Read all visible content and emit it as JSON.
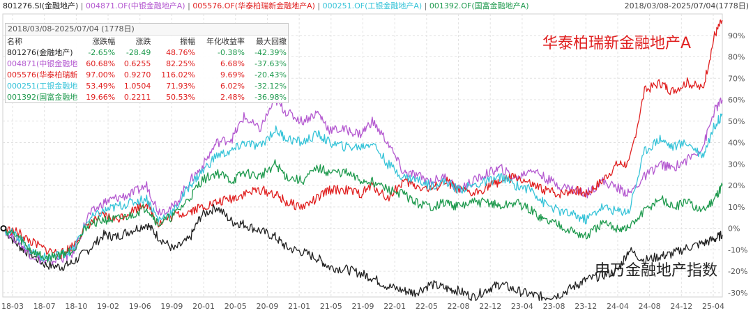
{
  "legend": [
    {
      "text": "801276.SI(金融地产)",
      "color": "#222222"
    },
    {
      "text": "004871.OF(中银金融地产A)",
      "color": "#b459d0"
    },
    {
      "text": "005576.OF(华泰柏瑞新金融地产A)",
      "color": "#e02020"
    },
    {
      "text": "000251.OF(工银金融地产A)",
      "color": "#36c3d8"
    },
    {
      "text": "001392.OF(国富金融地产A)",
      "color": "#1f9a4e"
    }
  ],
  "header_range": "2018/03/08-2025/07/04(1778日)",
  "stats": {
    "title": "2018/03/08-2025/07/04 (1778日)",
    "headers": [
      "名称",
      "涨跌幅",
      "涨跌",
      "振幅",
      "年化收益率",
      "最大回撤"
    ],
    "rows": [
      {
        "name": "801276(金融地产)",
        "color": "#222222",
        "values": [
          "-2.65%",
          "-28.49",
          "48.76%",
          "-0.38%",
          "-42.39%"
        ]
      },
      {
        "name": "004871(中银金融地",
        "color": "#b459d0",
        "values": [
          "60.68%",
          "0.6255",
          "82.25%",
          "6.68%",
          "-37.63%"
        ]
      },
      {
        "name": "005576(华泰柏瑞新",
        "color": "#e02020",
        "values": [
          "97.00%",
          "0.9270",
          "116.02%",
          "9.69%",
          "-20.43%"
        ]
      },
      {
        "name": "000251(工银金融地",
        "color": "#36c3d8",
        "values": [
          "53.49%",
          "1.0504",
          "71.93%",
          "6.02%",
          "-32.12%"
        ]
      },
      {
        "name": "001392(国富金融地",
        "color": "#1f9a4e",
        "values": [
          "19.66%",
          "0.2211",
          "50.53%",
          "2.48%",
          "-36.98%"
        ]
      }
    ]
  },
  "annotation_fund": "华泰柏瑞新金融地产A",
  "annotation_index": "申万金融地产指数",
  "chart_data": {
    "type": "line",
    "x_ticks": [
      "18-03",
      "18-07",
      "18-10",
      "19-02",
      "19-06",
      "19-09",
      "20-01",
      "20-05",
      "20-09",
      "21-01",
      "21-05",
      "21-09",
      "22-01",
      "22-05",
      "22-08",
      "22-12",
      "23-04",
      "23-08",
      "23-12",
      "24-04",
      "24-08",
      "24-12",
      "25-04"
    ],
    "y_ticks": [
      "-30%",
      "-20%",
      "-10%",
      "0%",
      "10%",
      "20%",
      "30%",
      "40%",
      "50%",
      "60%",
      "70%",
      "80%",
      "90%"
    ],
    "ylim": [
      -32,
      100
    ],
    "grid": true,
    "series": [
      {
        "name": "801276.SI(金融地产)",
        "color": "#222222",
        "points": [
          [
            0,
            0
          ],
          [
            4,
            -8
          ],
          [
            7,
            -12
          ],
          [
            11,
            -17
          ],
          [
            15,
            -18
          ],
          [
            18,
            -16
          ],
          [
            22,
            -10
          ],
          [
            26,
            -3
          ],
          [
            29,
            -4
          ],
          [
            33,
            -1
          ],
          [
            37,
            2
          ],
          [
            40,
            -4
          ],
          [
            44,
            -10
          ],
          [
            48,
            -5
          ],
          [
            51,
            6
          ],
          [
            55,
            10
          ],
          [
            59,
            3
          ],
          [
            62,
            2
          ],
          [
            66,
            -1
          ],
          [
            70,
            -4
          ],
          [
            73,
            -9
          ],
          [
            77,
            -11
          ],
          [
            81,
            -14
          ],
          [
            84,
            -18
          ],
          [
            88,
            -19
          ],
          [
            92,
            -21
          ],
          [
            95,
            -23
          ],
          [
            99,
            -27
          ],
          [
            103,
            -29
          ],
          [
            106,
            -30
          ],
          [
            110,
            -26
          ],
          [
            114,
            -28
          ],
          [
            117,
            -29
          ],
          [
            121,
            -32
          ],
          [
            125,
            -28
          ],
          [
            128,
            -26
          ],
          [
            132,
            -29
          ],
          [
            136,
            -31
          ],
          [
            139,
            -32
          ],
          [
            143,
            -31
          ],
          [
            147,
            -27
          ],
          [
            150,
            -24
          ],
          [
            154,
            -22
          ],
          [
            158,
            -20
          ],
          [
            161,
            -10
          ],
          [
            165,
            -15
          ],
          [
            169,
            -13
          ],
          [
            172,
            -12
          ],
          [
            176,
            -9
          ],
          [
            180,
            -7
          ],
          [
            183,
            -5
          ],
          [
            185,
            -3
          ]
        ]
      },
      {
        "name": "004871.OF(中银金融地产A)",
        "color": "#b459d0",
        "points": [
          [
            0,
            0
          ],
          [
            4,
            -6
          ],
          [
            7,
            -12
          ],
          [
            11,
            -16
          ],
          [
            15,
            -14
          ],
          [
            18,
            -12
          ],
          [
            22,
            6
          ],
          [
            26,
            12
          ],
          [
            29,
            14
          ],
          [
            33,
            16
          ],
          [
            37,
            20
          ],
          [
            40,
            8
          ],
          [
            44,
            10
          ],
          [
            48,
            22
          ],
          [
            51,
            28
          ],
          [
            55,
            40
          ],
          [
            59,
            42
          ],
          [
            62,
            52
          ],
          [
            66,
            46
          ],
          [
            70,
            60
          ],
          [
            73,
            54
          ],
          [
            77,
            50
          ],
          [
            81,
            54
          ],
          [
            84,
            46
          ],
          [
            88,
            46
          ],
          [
            92,
            44
          ],
          [
            95,
            50
          ],
          [
            99,
            40
          ],
          [
            103,
            26
          ],
          [
            106,
            25
          ],
          [
            110,
            22
          ],
          [
            114,
            24
          ],
          [
            117,
            18
          ],
          [
            121,
            22
          ],
          [
            125,
            26
          ],
          [
            128,
            28
          ],
          [
            132,
            23
          ],
          [
            136,
            28
          ],
          [
            139,
            24
          ],
          [
            143,
            20
          ],
          [
            147,
            18
          ],
          [
            150,
            16
          ],
          [
            154,
            22
          ],
          [
            158,
            19
          ],
          [
            161,
            16
          ],
          [
            165,
            24
          ],
          [
            169,
            30
          ],
          [
            172,
            28
          ],
          [
            176,
            32
          ],
          [
            180,
            38
          ],
          [
            183,
            55
          ],
          [
            185,
            60
          ]
        ]
      },
      {
        "name": "005576.OF(华泰柏瑞新金融地产A)",
        "color": "#e02020",
        "points": [
          [
            0,
            0
          ],
          [
            4,
            -2
          ],
          [
            7,
            -6
          ],
          [
            11,
            -10
          ],
          [
            15,
            -12
          ],
          [
            18,
            -8
          ],
          [
            22,
            2
          ],
          [
            26,
            6
          ],
          [
            29,
            4
          ],
          [
            33,
            8
          ],
          [
            37,
            12
          ],
          [
            40,
            2
          ],
          [
            44,
            6
          ],
          [
            48,
            8
          ],
          [
            51,
            10
          ],
          [
            55,
            12
          ],
          [
            59,
            14
          ],
          [
            62,
            16
          ],
          [
            66,
            18
          ],
          [
            70,
            16
          ],
          [
            73,
            12
          ],
          [
            77,
            10
          ],
          [
            81,
            14
          ],
          [
            84,
            18
          ],
          [
            88,
            18
          ],
          [
            92,
            16
          ],
          [
            95,
            20
          ],
          [
            99,
            14
          ],
          [
            103,
            22
          ],
          [
            106,
            20
          ],
          [
            110,
            18
          ],
          [
            114,
            22
          ],
          [
            117,
            18
          ],
          [
            121,
            16
          ],
          [
            125,
            20
          ],
          [
            128,
            22
          ],
          [
            132,
            24
          ],
          [
            136,
            20
          ],
          [
            139,
            18
          ],
          [
            143,
            16
          ],
          [
            147,
            18
          ],
          [
            150,
            16
          ],
          [
            154,
            22
          ],
          [
            158,
            30
          ],
          [
            161,
            30
          ],
          [
            165,
            64
          ],
          [
            169,
            68
          ],
          [
            172,
            64
          ],
          [
            176,
            68
          ],
          [
            180,
            65
          ],
          [
            183,
            90
          ],
          [
            185,
            97
          ]
        ]
      },
      {
        "name": "000251.OF(工银金融地产A)",
        "color": "#36c3d8",
        "points": [
          [
            0,
            0
          ],
          [
            4,
            -4
          ],
          [
            7,
            -10
          ],
          [
            11,
            -14
          ],
          [
            15,
            -12
          ],
          [
            18,
            -10
          ],
          [
            22,
            4
          ],
          [
            26,
            8
          ],
          [
            29,
            10
          ],
          [
            33,
            12
          ],
          [
            37,
            14
          ],
          [
            40,
            4
          ],
          [
            44,
            8
          ],
          [
            48,
            20
          ],
          [
            51,
            26
          ],
          [
            55,
            34
          ],
          [
            59,
            36
          ],
          [
            62,
            40
          ],
          [
            66,
            38
          ],
          [
            70,
            46
          ],
          [
            73,
            42
          ],
          [
            77,
            40
          ],
          [
            81,
            44
          ],
          [
            84,
            40
          ],
          [
            88,
            38
          ],
          [
            92,
            38
          ],
          [
            95,
            40
          ],
          [
            99,
            30
          ],
          [
            103,
            24
          ],
          [
            106,
            23
          ],
          [
            110,
            20
          ],
          [
            114,
            22
          ],
          [
            117,
            18
          ],
          [
            121,
            20
          ],
          [
            125,
            22
          ],
          [
            128,
            24
          ],
          [
            132,
            20
          ],
          [
            136,
            18
          ],
          [
            139,
            12
          ],
          [
            143,
            8
          ],
          [
            147,
            6
          ],
          [
            150,
            4
          ],
          [
            154,
            10
          ],
          [
            158,
            8
          ],
          [
            161,
            8
          ],
          [
            165,
            36
          ],
          [
            169,
            42
          ],
          [
            172,
            38
          ],
          [
            176,
            40
          ],
          [
            180,
            34
          ],
          [
            183,
            48
          ],
          [
            185,
            53
          ]
        ]
      },
      {
        "name": "001392.OF(国富金融地产A)",
        "color": "#1f9a4e",
        "points": [
          [
            0,
            0
          ],
          [
            4,
            -4
          ],
          [
            7,
            -10
          ],
          [
            11,
            -14
          ],
          [
            15,
            -12
          ],
          [
            18,
            -10
          ],
          [
            22,
            2
          ],
          [
            26,
            4
          ],
          [
            29,
            4
          ],
          [
            33,
            6
          ],
          [
            37,
            10
          ],
          [
            40,
            2
          ],
          [
            44,
            6
          ],
          [
            48,
            14
          ],
          [
            51,
            22
          ],
          [
            55,
            26
          ],
          [
            59,
            22
          ],
          [
            62,
            26
          ],
          [
            66,
            24
          ],
          [
            70,
            30
          ],
          [
            73,
            24
          ],
          [
            77,
            22
          ],
          [
            81,
            28
          ],
          [
            84,
            26
          ],
          [
            88,
            26
          ],
          [
            92,
            22
          ],
          [
            95,
            22
          ],
          [
            99,
            18
          ],
          [
            103,
            16
          ],
          [
            106,
            12
          ],
          [
            110,
            10
          ],
          [
            114,
            12
          ],
          [
            117,
            10
          ],
          [
            121,
            12
          ],
          [
            125,
            12
          ],
          [
            128,
            10
          ],
          [
            132,
            12
          ],
          [
            136,
            8
          ],
          [
            139,
            4
          ],
          [
            143,
            2
          ],
          [
            147,
            -2
          ],
          [
            150,
            -4
          ],
          [
            154,
            2
          ],
          [
            158,
            0
          ],
          [
            161,
            0
          ],
          [
            165,
            8
          ],
          [
            169,
            14
          ],
          [
            172,
            10
          ],
          [
            176,
            12
          ],
          [
            180,
            8
          ],
          [
            183,
            14
          ],
          [
            185,
            20
          ]
        ]
      }
    ]
  }
}
